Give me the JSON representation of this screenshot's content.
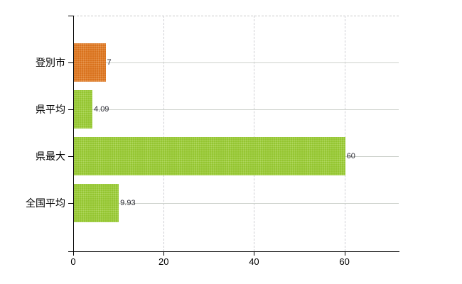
{
  "page": {
    "background_color": "#ffffff"
  },
  "chart_data": {
    "type": "bar",
    "orientation": "horizontal",
    "title": "",
    "categories": [
      "登別市",
      "県平均",
      "県最大",
      "全国平均"
    ],
    "values": [
      7,
      4.09,
      60,
      9.93
    ],
    "value_labels": [
      "7",
      "4.09",
      "60",
      "9.93"
    ],
    "bar_colors": [
      "#e2771e",
      "#9acd32",
      "#9acd32",
      "#9acd32"
    ],
    "highlight_color": "#e2771e",
    "series_color": "#9acd32",
    "xlim": [
      0,
      72
    ],
    "x_ticks": [
      0,
      20,
      40,
      60
    ],
    "x_tick_labels": [
      "0",
      "20",
      "40",
      "60"
    ],
    "grid": true,
    "gridline_color": "#cccccc",
    "axis_color": "#000000",
    "value_label_color": "#2a2a33",
    "legend_position": "none"
  }
}
